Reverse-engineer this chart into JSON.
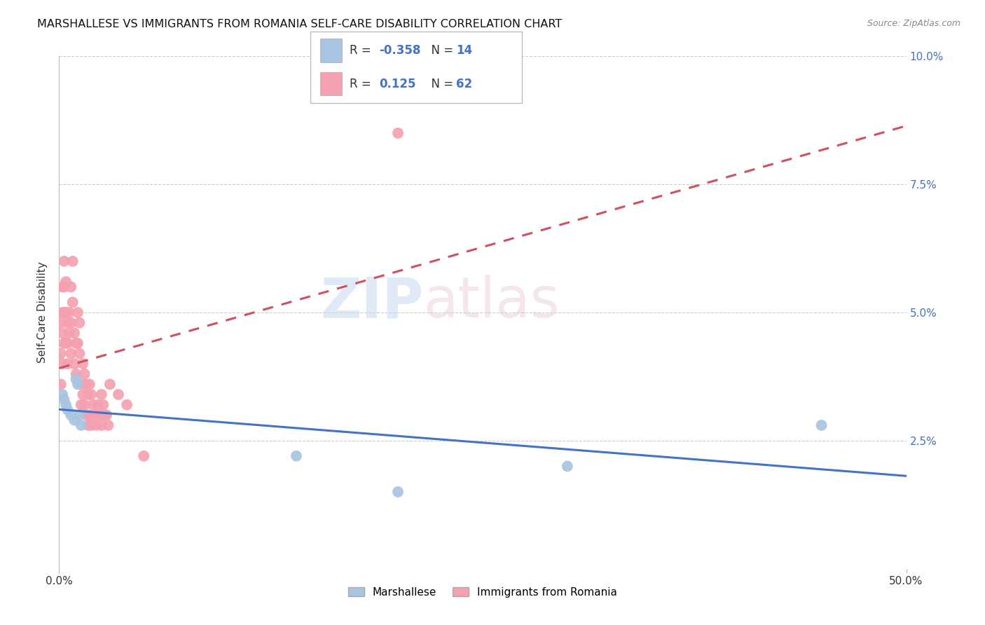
{
  "title": "MARSHALLESE VS IMMIGRANTS FROM ROMANIA SELF-CARE DISABILITY CORRELATION CHART",
  "source": "Source: ZipAtlas.com",
  "ylabel": "Self-Care Disability",
  "xlim": [
    0,
    0.5
  ],
  "ylim": [
    0,
    0.1
  ],
  "xtick_vals": [
    0.0,
    0.5
  ],
  "xtick_labels": [
    "0.0%",
    "50.0%"
  ],
  "ytick_vals": [
    0.0,
    0.025,
    0.05,
    0.075,
    0.1
  ],
  "ytick_labels_right": [
    "",
    "2.5%",
    "5.0%",
    "7.5%",
    "10.0%"
  ],
  "blue_color": "#a8c4e0",
  "pink_color": "#f4a0b0",
  "blue_line_color": "#4472c4",
  "pink_line_color": "#d05060",
  "watermark_zip": "ZIP",
  "watermark_atlas": "atlas",
  "legend_label_blue": "Marshallese",
  "legend_label_pink": "Immigrants from Romania",
  "blue_points_x": [
    0.002,
    0.003,
    0.004,
    0.005,
    0.007,
    0.009,
    0.01,
    0.011,
    0.012,
    0.013,
    0.45,
    0.3,
    0.14,
    0.2
  ],
  "blue_points_y": [
    0.034,
    0.033,
    0.032,
    0.031,
    0.03,
    0.029,
    0.037,
    0.036,
    0.03,
    0.028,
    0.028,
    0.02,
    0.022,
    0.015
  ],
  "pink_points_x": [
    0.001,
    0.001,
    0.001,
    0.002,
    0.002,
    0.002,
    0.002,
    0.003,
    0.003,
    0.003,
    0.003,
    0.004,
    0.004,
    0.004,
    0.005,
    0.005,
    0.005,
    0.006,
    0.006,
    0.007,
    0.007,
    0.007,
    0.008,
    0.008,
    0.009,
    0.009,
    0.01,
    0.01,
    0.011,
    0.011,
    0.012,
    0.012,
    0.013,
    0.013,
    0.014,
    0.014,
    0.015,
    0.015,
    0.016,
    0.016,
    0.017,
    0.017,
    0.018,
    0.018,
    0.019,
    0.019,
    0.02,
    0.021,
    0.022,
    0.023,
    0.024,
    0.025,
    0.025,
    0.026,
    0.027,
    0.028,
    0.029,
    0.03,
    0.035,
    0.04,
    0.05,
    0.2
  ],
  "pink_points_y": [
    0.048,
    0.042,
    0.036,
    0.055,
    0.05,
    0.046,
    0.04,
    0.06,
    0.055,
    0.05,
    0.044,
    0.056,
    0.05,
    0.044,
    0.048,
    0.044,
    0.04,
    0.05,
    0.046,
    0.055,
    0.048,
    0.042,
    0.06,
    0.052,
    0.046,
    0.04,
    0.044,
    0.038,
    0.05,
    0.044,
    0.048,
    0.042,
    0.036,
    0.032,
    0.04,
    0.034,
    0.038,
    0.032,
    0.036,
    0.03,
    0.034,
    0.028,
    0.036,
    0.03,
    0.034,
    0.028,
    0.032,
    0.03,
    0.028,
    0.032,
    0.03,
    0.034,
    0.028,
    0.032,
    0.03,
    0.03,
    0.028,
    0.036,
    0.034,
    0.032,
    0.022,
    0.085
  ]
}
